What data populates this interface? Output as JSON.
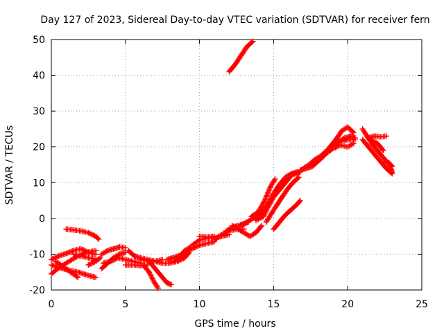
{
  "chart_data": {
    "type": "scatter",
    "title": "Day 127 of 2023, Sidereal Day-to-day VTEC variation (SDTVAR) for receiver fern",
    "xlabel": "GPS time / hours",
    "ylabel": "SDTVAR / TECUs",
    "xlim": [
      0,
      25
    ],
    "ylim": [
      -20,
      50
    ],
    "xticks": [
      0,
      5,
      10,
      15,
      20,
      25
    ],
    "yticks": [
      -20,
      -10,
      0,
      10,
      20,
      30,
      40,
      50
    ],
    "grid": true,
    "marker": "+",
    "color": "#ff0000",
    "series": [
      {
        "name": "arc-1",
        "points": [
          [
            0.0,
            -13.0
          ],
          [
            0.6,
            -13.8
          ],
          [
            1.2,
            -14.5
          ],
          [
            1.8,
            -15.0
          ],
          [
            2.4,
            -15.8
          ],
          [
            3.0,
            -16.5
          ]
        ]
      },
      {
        "name": "arc-2",
        "points": [
          [
            0.0,
            -15.5
          ],
          [
            0.6,
            -13.5
          ],
          [
            1.2,
            -12.0
          ],
          [
            1.8,
            -10.5
          ],
          [
            2.4,
            -9.5
          ],
          [
            3.0,
            -9.0
          ]
        ]
      },
      {
        "name": "arc-3",
        "points": [
          [
            0.0,
            -11.5
          ],
          [
            0.5,
            -10.5
          ],
          [
            1.0,
            -9.8
          ],
          [
            1.5,
            -9.0
          ],
          [
            2.0,
            -8.5
          ],
          [
            2.5,
            -9.5
          ],
          [
            3.0,
            -10.0
          ]
        ]
      },
      {
        "name": "arc-4",
        "points": [
          [
            0.3,
            -12.0
          ],
          [
            0.8,
            -13.5
          ],
          [
            1.3,
            -15.0
          ],
          [
            1.8,
            -16.5
          ]
        ]
      },
      {
        "name": "arc-5",
        "points": [
          [
            1.0,
            -3.0
          ],
          [
            1.5,
            -3.2
          ],
          [
            2.0,
            -3.5
          ],
          [
            2.5,
            -4.0
          ],
          [
            3.0,
            -5.0
          ],
          [
            3.2,
            -5.8
          ]
        ]
      },
      {
        "name": "arc-6",
        "points": [
          [
            1.5,
            -10.0
          ],
          [
            2.0,
            -10.5
          ],
          [
            2.5,
            -11.0
          ],
          [
            3.0,
            -11.5
          ]
        ]
      },
      {
        "name": "arc-7",
        "points": [
          [
            2.5,
            -13.0
          ],
          [
            3.0,
            -12.0
          ],
          [
            3.3,
            -11.0
          ]
        ]
      },
      {
        "name": "arc-8",
        "points": [
          [
            3.4,
            -14.0
          ],
          [
            3.8,
            -12.5
          ],
          [
            4.2,
            -11.0
          ],
          [
            4.6,
            -10.0
          ],
          [
            5.0,
            -9.5
          ]
        ]
      },
      {
        "name": "arc-9",
        "points": [
          [
            3.4,
            -10.0
          ],
          [
            3.8,
            -9.0
          ],
          [
            4.2,
            -8.5
          ],
          [
            4.6,
            -8.0
          ],
          [
            5.0,
            -8.2
          ]
        ]
      },
      {
        "name": "arc-10",
        "points": [
          [
            3.5,
            -12.5
          ],
          [
            4.0,
            -12.0
          ],
          [
            4.5,
            -11.0
          ],
          [
            5.0,
            -11.5
          ],
          [
            5.5,
            -12.0
          ],
          [
            6.0,
            -12.5
          ]
        ]
      },
      {
        "name": "arc-11",
        "points": [
          [
            5.0,
            -13.0
          ],
          [
            5.5,
            -13.0
          ],
          [
            6.0,
            -13.2
          ],
          [
            6.5,
            -13.0
          ]
        ]
      },
      {
        "name": "arc-12",
        "points": [
          [
            5.2,
            -9.0
          ],
          [
            5.6,
            -10.5
          ],
          [
            6.0,
            -11.0
          ],
          [
            6.5,
            -11.5
          ],
          [
            7.0,
            -12.0
          ],
          [
            7.5,
            -11.5
          ]
        ]
      },
      {
        "name": "arc-13",
        "points": [
          [
            6.2,
            -13.0
          ],
          [
            6.6,
            -15.0
          ],
          [
            6.9,
            -17.5
          ],
          [
            7.2,
            -19.5
          ]
        ]
      },
      {
        "name": "arc-14",
        "points": [
          [
            6.6,
            -12.0
          ],
          [
            7.0,
            -14.0
          ],
          [
            7.4,
            -16.0
          ],
          [
            7.8,
            -18.0
          ],
          [
            8.1,
            -18.5
          ]
        ]
      },
      {
        "name": "arc-15",
        "points": [
          [
            6.0,
            -11.5
          ],
          [
            6.5,
            -11.8
          ],
          [
            7.0,
            -12.0
          ],
          [
            7.5,
            -12.5
          ],
          [
            8.0,
            -12.5
          ],
          [
            8.5,
            -12.0
          ],
          [
            9.0,
            -11.0
          ],
          [
            9.3,
            -9.5
          ]
        ]
      },
      {
        "name": "arc-16",
        "points": [
          [
            7.8,
            -11.5
          ],
          [
            8.2,
            -11.0
          ],
          [
            8.6,
            -10.5
          ],
          [
            9.0,
            -10.0
          ],
          [
            9.4,
            -8.5
          ]
        ]
      },
      {
        "name": "arc-17",
        "points": [
          [
            8.3,
            -12.0
          ],
          [
            8.7,
            -10.5
          ],
          [
            9.0,
            -9.0
          ],
          [
            9.4,
            -8.0
          ]
        ]
      },
      {
        "name": "arc-18",
        "points": [
          [
            9.5,
            -7.5
          ],
          [
            10.0,
            -6.0
          ],
          [
            10.5,
            -5.5
          ],
          [
            11.0,
            -5.5
          ],
          [
            11.5,
            -5.0
          ],
          [
            12.0,
            -4.5
          ]
        ]
      },
      {
        "name": "arc-19",
        "points": [
          [
            9.5,
            -8.5
          ],
          [
            10.0,
            -7.5
          ],
          [
            10.5,
            -7.0
          ],
          [
            11.0,
            -6.5
          ]
        ]
      },
      {
        "name": "arc-20",
        "points": [
          [
            10.0,
            -5.0
          ],
          [
            10.5,
            -5.2
          ],
          [
            11.0,
            -5.0
          ]
        ]
      },
      {
        "name": "arc-21",
        "points": [
          [
            11.0,
            -6.0
          ],
          [
            11.5,
            -4.5
          ],
          [
            12.0,
            -3.5
          ],
          [
            12.5,
            -3.0
          ],
          [
            13.0,
            -3.0
          ]
        ]
      },
      {
        "name": "arc-22",
        "points": [
          [
            11.8,
            -3.5
          ],
          [
            12.2,
            -2.5
          ],
          [
            12.6,
            -2.0
          ],
          [
            13.0,
            -1.5
          ],
          [
            13.3,
            -1.0
          ]
        ]
      },
      {
        "name": "arc-23",
        "points": [
          [
            12.2,
            -2.0
          ],
          [
            12.6,
            -3.0
          ],
          [
            13.0,
            -4.0
          ],
          [
            13.4,
            -5.0
          ],
          [
            13.8,
            -4.0
          ],
          [
            14.2,
            -2.0
          ]
        ]
      },
      {
        "name": "arc-24",
        "points": [
          [
            12.8,
            -2.0
          ],
          [
            13.2,
            -1.0
          ],
          [
            13.6,
            0.0
          ],
          [
            14.0,
            1.0
          ],
          [
            14.4,
            2.0
          ]
        ]
      },
      {
        "name": "arc-25",
        "points": [
          [
            13.5,
            0.5
          ],
          [
            14.0,
            2.0
          ],
          [
            14.4,
            5.0
          ],
          [
            14.8,
            9.0
          ],
          [
            15.1,
            11.0
          ]
        ]
      },
      {
        "name": "arc-26",
        "points": [
          [
            13.8,
            -0.5
          ],
          [
            14.3,
            0.5
          ],
          [
            14.6,
            3.0
          ],
          [
            15.0,
            6.0
          ],
          [
            15.4,
            8.0
          ],
          [
            15.8,
            10.0
          ],
          [
            16.2,
            12.0
          ]
        ]
      },
      {
        "name": "arc-27",
        "points": [
          [
            14.5,
            -1.0
          ],
          [
            14.8,
            1.0
          ],
          [
            15.1,
            3.0
          ],
          [
            15.5,
            5.5
          ],
          [
            15.9,
            8.0
          ],
          [
            16.3,
            10.0
          ],
          [
            16.7,
            11.5
          ]
        ]
      },
      {
        "name": "arc-28",
        "points": [
          [
            14.2,
            1.5
          ],
          [
            14.6,
            4.0
          ],
          [
            15.0,
            7.0
          ],
          [
            15.4,
            9.5
          ],
          [
            15.8,
            11.5
          ],
          [
            16.2,
            12.5
          ],
          [
            16.6,
            13.0
          ]
        ]
      },
      {
        "name": "arc-29",
        "points": [
          [
            15.0,
            -3.0
          ],
          [
            15.4,
            -1.0
          ],
          [
            15.8,
            1.0
          ],
          [
            16.2,
            2.5
          ],
          [
            16.6,
            4.0
          ],
          [
            16.8,
            5.0
          ]
        ]
      },
      {
        "name": "arc-30",
        "points": [
          [
            16.0,
            12.0
          ],
          [
            16.5,
            12.5
          ],
          [
            16.8,
            13.0
          ]
        ]
      },
      {
        "name": "arc-31",
        "points": [
          [
            16.8,
            13.5
          ],
          [
            17.2,
            14.0
          ],
          [
            17.6,
            14.5
          ],
          [
            18.0,
            16.0
          ],
          [
            18.4,
            17.5
          ],
          [
            18.8,
            20.0
          ],
          [
            19.2,
            22.0
          ],
          [
            19.6,
            24.5
          ],
          [
            20.0,
            25.5
          ],
          [
            20.4,
            24.0
          ]
        ]
      },
      {
        "name": "arc-32",
        "points": [
          [
            17.0,
            14.0
          ],
          [
            17.4,
            15.0
          ],
          [
            17.8,
            16.5
          ],
          [
            18.2,
            17.5
          ],
          [
            18.6,
            19.0
          ],
          [
            19.0,
            20.5
          ],
          [
            19.4,
            21.5
          ],
          [
            19.8,
            22.5
          ],
          [
            20.2,
            23.0
          ],
          [
            20.5,
            22.5
          ]
        ]
      },
      {
        "name": "arc-33",
        "points": [
          [
            18.0,
            16.5
          ],
          [
            18.5,
            18.0
          ],
          [
            19.0,
            19.5
          ],
          [
            19.5,
            20.5
          ],
          [
            20.0,
            20.0
          ],
          [
            20.4,
            21.0
          ]
        ]
      },
      {
        "name": "arc-34",
        "points": [
          [
            18.5,
            18.5
          ],
          [
            19.0,
            20.0
          ],
          [
            19.5,
            21.5
          ],
          [
            20.0,
            22.0
          ],
          [
            20.5,
            22.0
          ]
        ]
      },
      {
        "name": "arc-35",
        "points": [
          [
            21.0,
            25.0
          ],
          [
            21.3,
            23.0
          ],
          [
            21.6,
            21.0
          ],
          [
            22.0,
            19.0
          ],
          [
            22.4,
            17.0
          ],
          [
            22.8,
            15.0
          ],
          [
            23.0,
            13.0
          ]
        ]
      },
      {
        "name": "arc-36",
        "points": [
          [
            21.0,
            22.0
          ],
          [
            21.4,
            20.0
          ],
          [
            21.8,
            18.0
          ],
          [
            22.2,
            16.0
          ],
          [
            22.6,
            14.0
          ],
          [
            23.0,
            12.5
          ]
        ]
      },
      {
        "name": "arc-37",
        "points": [
          [
            21.5,
            22.0
          ],
          [
            22.0,
            21.0
          ],
          [
            22.4,
            19.0
          ]
        ]
      },
      {
        "name": "arc-38",
        "points": [
          [
            21.4,
            22.5
          ],
          [
            21.8,
            23.0
          ],
          [
            22.2,
            22.8
          ],
          [
            22.6,
            23.0
          ]
        ]
      },
      {
        "name": "arc-39",
        "points": [
          [
            22.5,
            16.0
          ],
          [
            22.8,
            15.5
          ],
          [
            23.0,
            14.5
          ]
        ]
      },
      {
        "name": "arc-40",
        "points": [
          [
            12.0,
            41.0
          ],
          [
            12.4,
            43.0
          ],
          [
            12.8,
            45.5
          ],
          [
            13.2,
            48.0
          ],
          [
            13.6,
            49.5
          ]
        ]
      }
    ]
  }
}
